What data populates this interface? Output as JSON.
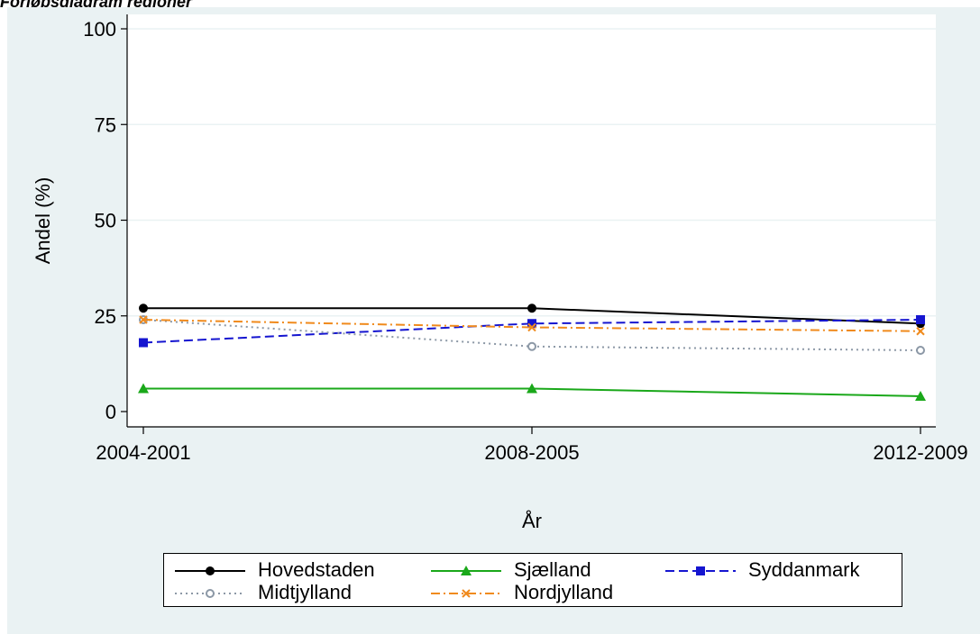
{
  "title": "Forløbsdiagram regioner",
  "chart_data": {
    "type": "line",
    "title": "Forløbsdiagram regioner",
    "xlabel": "År",
    "ylabel": "Andel (%)",
    "categories": [
      "2004-2001",
      "2008-2005",
      "2012-2009"
    ],
    "ylim": [
      0,
      100
    ],
    "yticks": [
      0,
      25,
      50,
      75,
      100
    ],
    "grid": true,
    "legend_position": "bottom",
    "series": [
      {
        "name": "Hovedstaden",
        "values": [
          27,
          27,
          23
        ],
        "color": "#000000",
        "dash": "solid",
        "marker": "circle"
      },
      {
        "name": "Sjælland",
        "values": [
          6,
          6,
          4
        ],
        "color": "#1aa81a",
        "dash": "solid",
        "marker": "triangle"
      },
      {
        "name": "Syddanmark",
        "values": [
          18,
          23,
          24
        ],
        "color": "#1515d0",
        "dash": "dash",
        "marker": "square"
      },
      {
        "name": "Midtjylland",
        "values": [
          24,
          17,
          16
        ],
        "color": "#8c98a6",
        "dash": "dot",
        "marker": "hollow-circle"
      },
      {
        "name": "Nordjylland",
        "values": [
          24,
          22,
          21
        ],
        "color": "#f08a1c",
        "dash": "dashdot",
        "marker": "x"
      }
    ]
  }
}
